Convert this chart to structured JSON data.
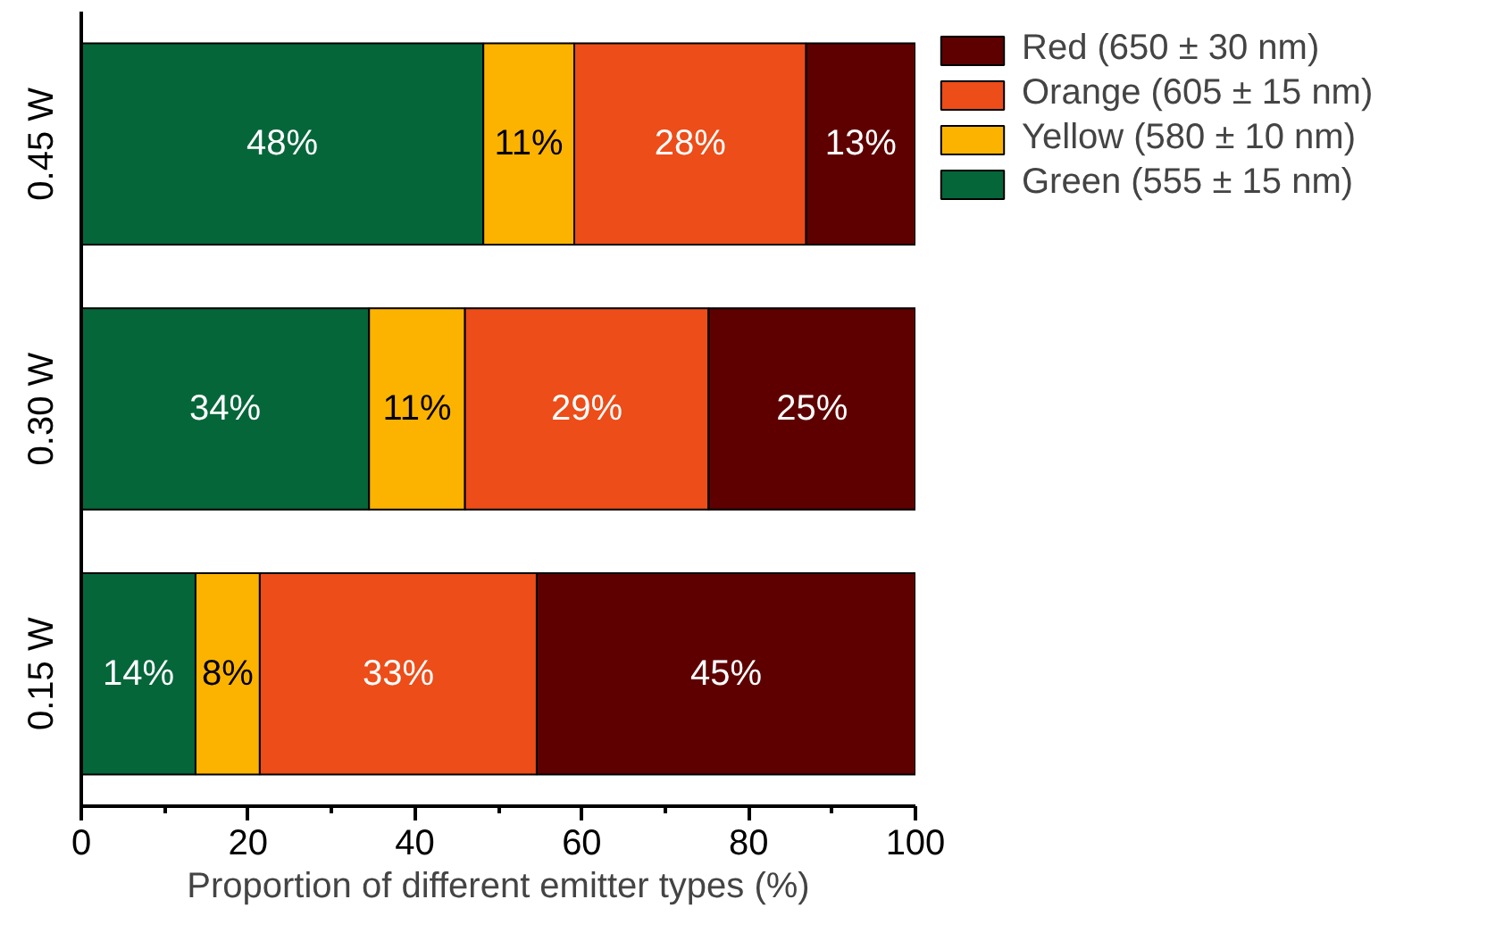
{
  "chart_data": {
    "type": "bar",
    "orientation": "horizontal",
    "stacked": true,
    "categories": [
      "0.45 W",
      "0.30 W",
      "0.15 W"
    ],
    "xlabel": "Proportion of different emitter types (%)",
    "xlim": [
      0,
      100
    ],
    "xticks": [
      0,
      20,
      40,
      60,
      80,
      100
    ],
    "legend": "top right",
    "grid": false,
    "series": [
      {
        "name": "Green (555 ± 15 nm)",
        "color": "#05663a",
        "values": [
          48.2,
          34.5,
          13.7
        ],
        "value_labels": [
          "48%",
          "34%",
          "14%"
        ]
      },
      {
        "name": "Yellow (580 ± 10 nm)",
        "color": "#fcb300",
        "values": [
          10.9,
          11.5,
          7.7
        ],
        "value_labels": [
          "11%",
          "11%",
          "8%"
        ]
      },
      {
        "name": "Orange (605 ± 15 nm)",
        "color": "#ec4d19",
        "values": [
          27.8,
          29.2,
          33.2
        ],
        "value_labels": [
          "28%",
          "29%",
          "33%"
        ]
      },
      {
        "name": "Red (650 ± 30 nm)",
        "color": "#5e0000",
        "values": [
          13.1,
          24.8,
          45.4
        ],
        "value_labels": [
          "13%",
          "25%",
          "45%"
        ]
      }
    ]
  }
}
